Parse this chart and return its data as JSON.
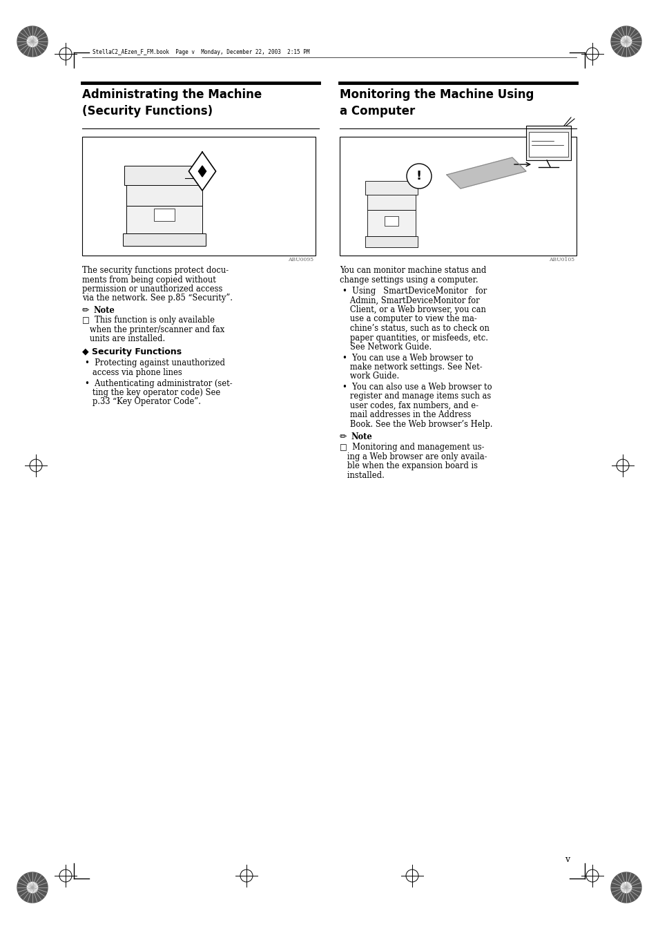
{
  "background_color": "#ffffff",
  "header_text": "StellaC2_AEzen_F_FM.book  Page v  Monday, December 22, 2003  2:15 PM",
  "section1_title_line1": "Administrating the Machine",
  "section1_title_line2": "(Security Functions)",
  "section2_title_line1": "Monitoring the Machine Using",
  "section2_title_line2": "a Computer",
  "img1_caption": "ABU0095",
  "img2_caption": "ABU0105",
  "body1_lines": [
    "The security functions protect docu-",
    "ments from being copied without",
    "permission or unauthorized access",
    "via the network. See p.85 “Security”."
  ],
  "note1_label": "Note",
  "note1_lines": [
    "□  This function is only available",
    "   when the printer/scanner and fax",
    "   units are installed."
  ],
  "sf_header": "◆ Security Functions",
  "sf_b1": [
    "•  Protecting against unauthorized",
    "   access via phone lines"
  ],
  "sf_b2": [
    "•  Authenticating administrator (set-",
    "   ting the key operator code) See",
    "   p.33 “Key Operator Code”."
  ],
  "body2_lines": [
    "You can monitor machine status and",
    "change settings using a computer."
  ],
  "b21_lines": [
    "•  Using   SmartDeviceMonitor   for",
    "   Admin, SmartDeviceMonitor for",
    "   Client, or a Web browser, you can",
    "   use a computer to view the ma-",
    "   chine’s status, such as to check on",
    "   paper quantities, or misfeeds, etc.",
    "   See Network Guide."
  ],
  "b22_lines": [
    "•  You can use a Web browser to",
    "   make network settings. See Net-",
    "   work Guide."
  ],
  "b23_lines": [
    "•  You can also use a Web browser to",
    "   register and manage items such as",
    "   user codes, fax numbers, and e-",
    "   mail addresses in the Address",
    "   Book. See the Web browser’s Help."
  ],
  "note2_label": "Note",
  "note2_lines": [
    "□  Monitoring and management us-",
    "   ing a Web browser are only availa-",
    "   ble when the expansion board is",
    "   installed."
  ],
  "page_num": "v"
}
